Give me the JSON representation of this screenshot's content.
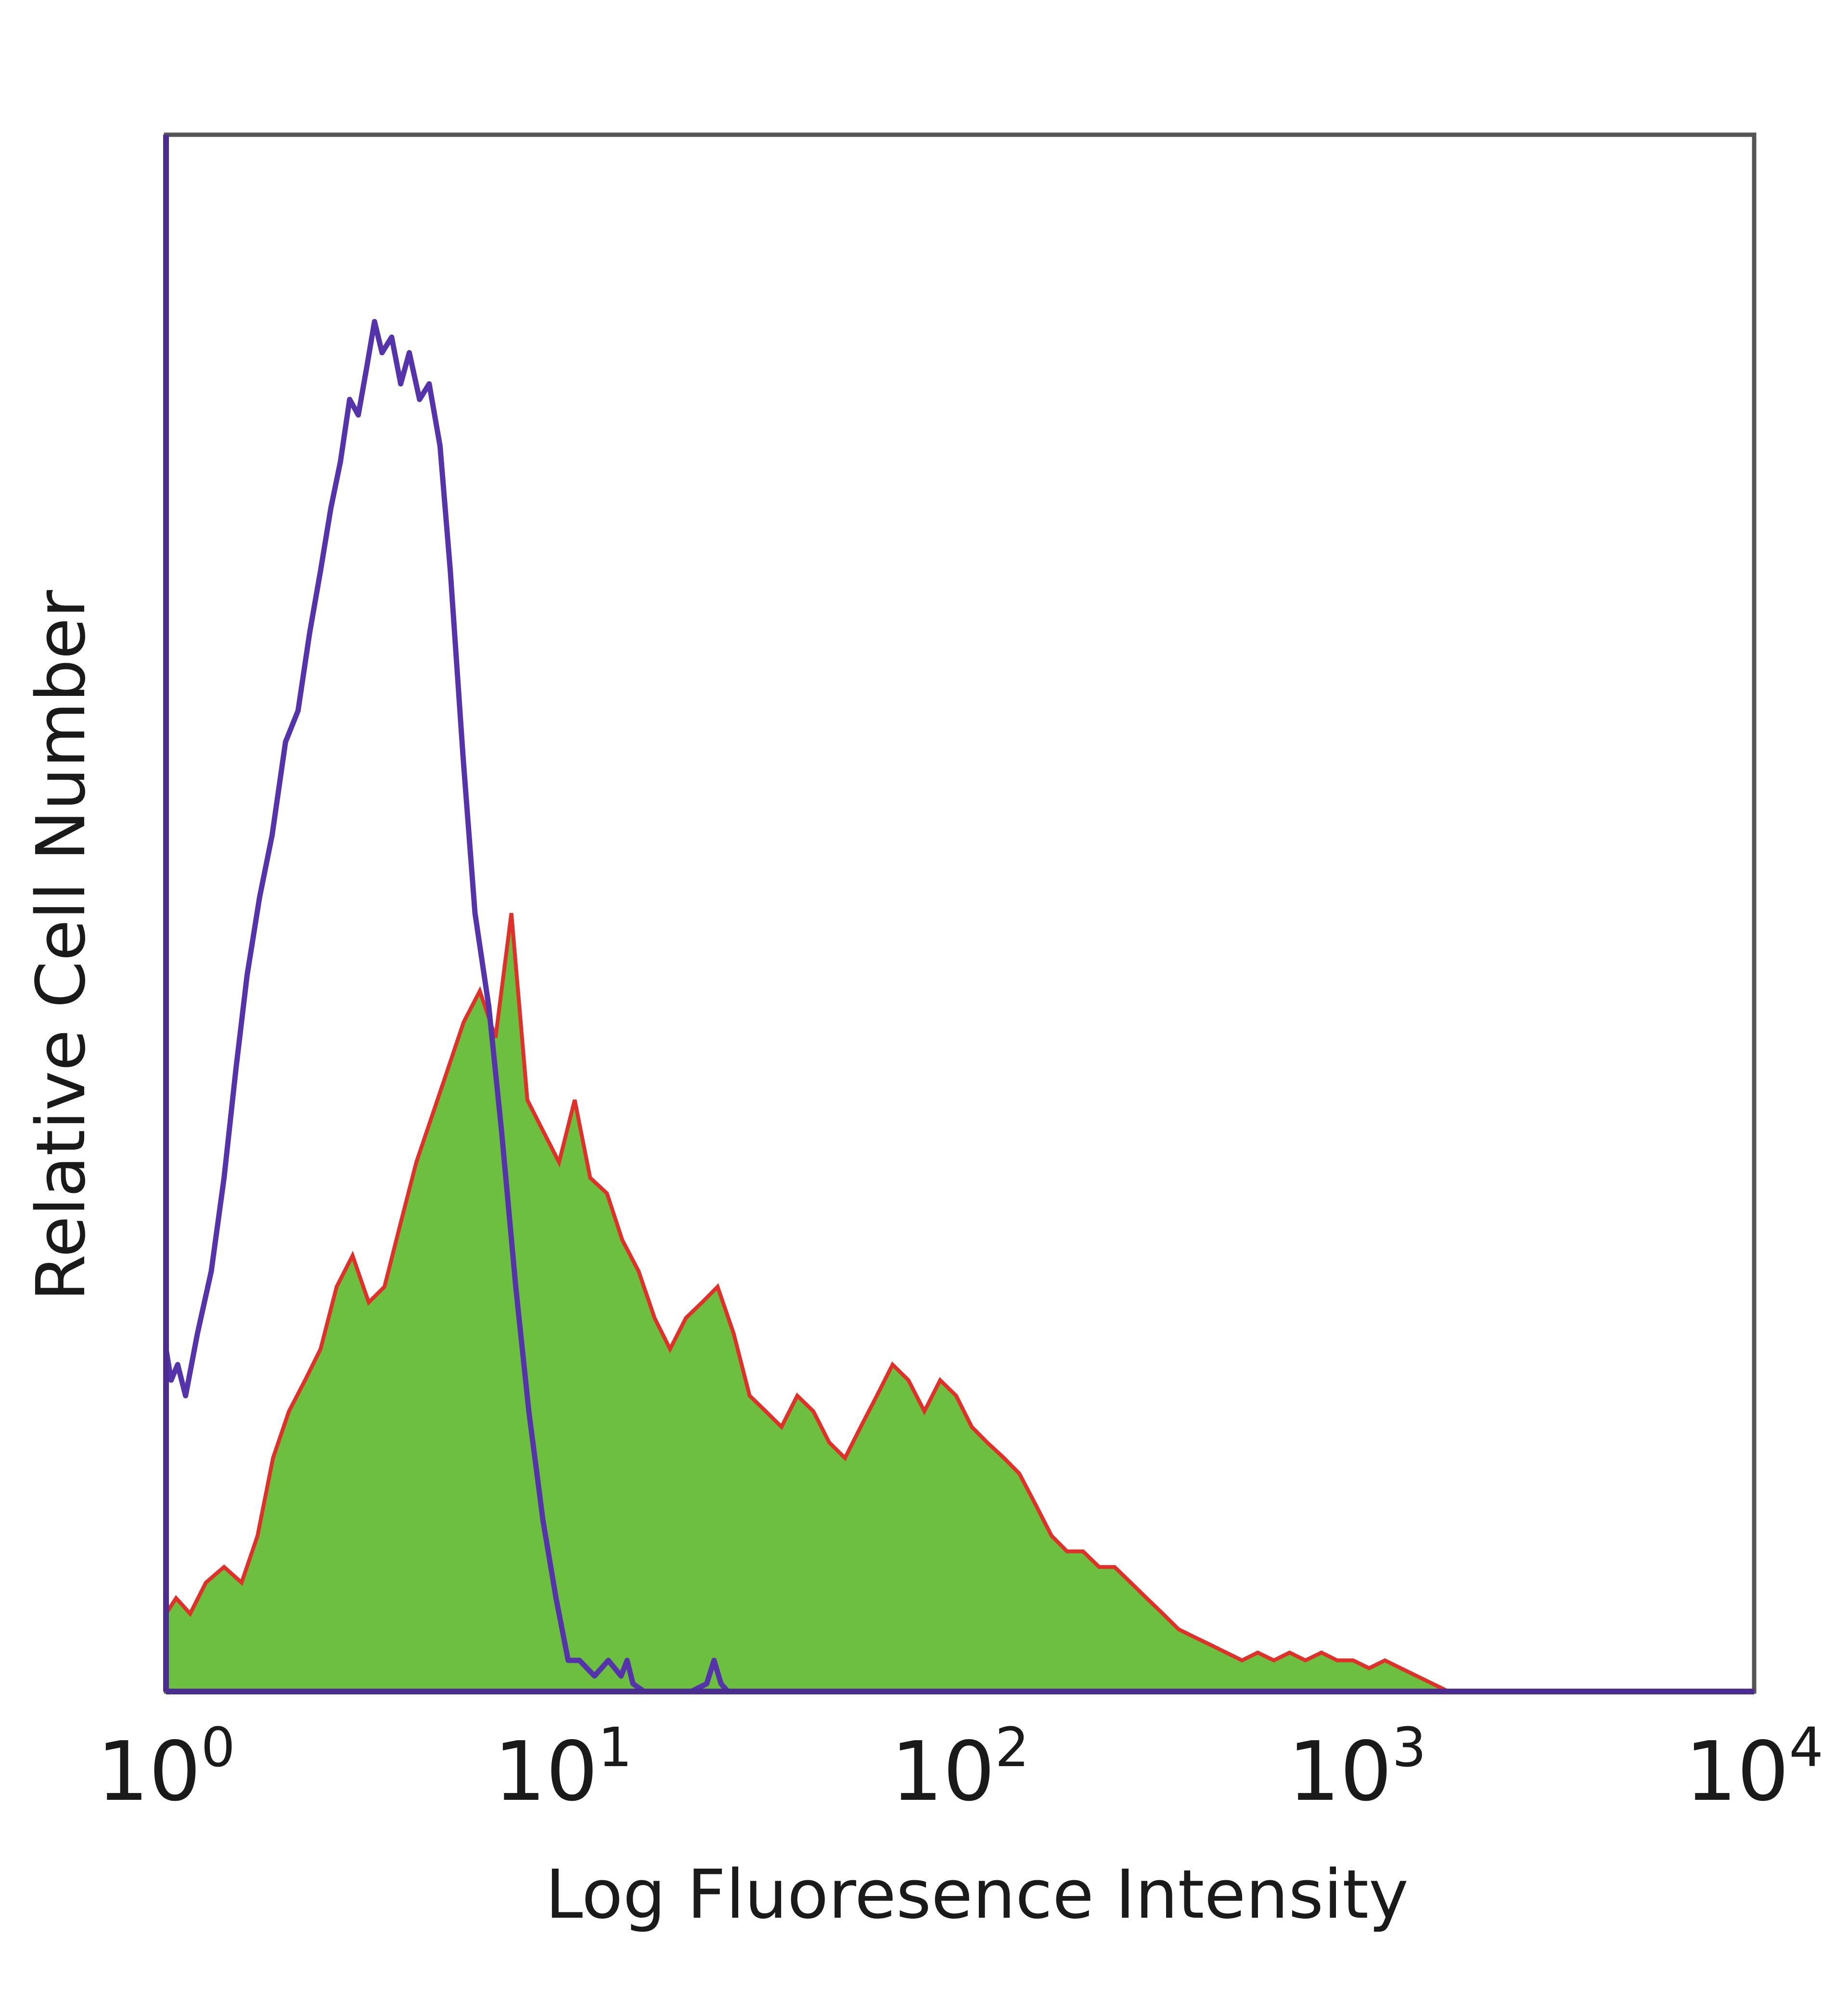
{
  "chart_data": {
    "type": "area",
    "title": "",
    "xlabel": "Log Fluoresence Intensity",
    "ylabel": "Relative Cell Number",
    "x_scale": "log",
    "xlim": [
      1,
      10000
    ],
    "ylim": [
      0,
      1
    ],
    "grid": false,
    "legend": "none",
    "x_ticks": [
      {
        "value": 1,
        "base": "10",
        "exp": "0"
      },
      {
        "value": 10,
        "base": "10",
        "exp": "1"
      },
      {
        "value": 100,
        "base": "10",
        "exp": "2"
      },
      {
        "value": 1000,
        "base": "10",
        "exp": "3"
      },
      {
        "value": 10000,
        "base": "10",
        "exp": "4"
      }
    ],
    "series": [
      {
        "style": "filled",
        "fill_color": "#6cbf3f",
        "edge_color": "#e0302a",
        "x": [
          1.0,
          1.06,
          1.15,
          1.26,
          1.4,
          1.55,
          1.7,
          1.86,
          2.04,
          2.24,
          2.45,
          2.69,
          2.95,
          3.24,
          3.55,
          3.89,
          4.27,
          4.68,
          5.13,
          5.62,
          6.17,
          6.76,
          7.41,
          8.13,
          8.91,
          9.77,
          10.7,
          11.7,
          12.9,
          14.1,
          15.5,
          17.0,
          18.6,
          20.4,
          22.4,
          24.5,
          26.9,
          29.5,
          32.4,
          35.5,
          38.9,
          42.7,
          46.8,
          51.3,
          56.2,
          61.7,
          67.6,
          74.1,
          81.3,
          89.1,
          97.7,
          107,
          117,
          129,
          141,
          155,
          170,
          186,
          204,
          224,
          245,
          269,
          295,
          324,
          355,
          389,
          427,
          468,
          513,
          562,
          617,
          676,
          741,
          813,
          891,
          977,
          1072,
          1175,
          1288,
          1413,
          1549,
          1700
        ],
        "y": [
          0.05,
          0.06,
          0.05,
          0.07,
          0.08,
          0.07,
          0.1,
          0.15,
          0.18,
          0.2,
          0.22,
          0.26,
          0.28,
          0.25,
          0.26,
          0.3,
          0.34,
          0.37,
          0.4,
          0.43,
          0.45,
          0.42,
          0.5,
          0.38,
          0.36,
          0.34,
          0.38,
          0.33,
          0.32,
          0.29,
          0.27,
          0.24,
          0.22,
          0.24,
          0.25,
          0.26,
          0.23,
          0.19,
          0.18,
          0.17,
          0.19,
          0.18,
          0.16,
          0.15,
          0.17,
          0.19,
          0.21,
          0.2,
          0.18,
          0.2,
          0.19,
          0.17,
          0.16,
          0.15,
          0.14,
          0.12,
          0.1,
          0.09,
          0.09,
          0.08,
          0.08,
          0.07,
          0.06,
          0.05,
          0.04,
          0.035,
          0.03,
          0.025,
          0.02,
          0.025,
          0.02,
          0.025,
          0.02,
          0.025,
          0.02,
          0.02,
          0.015,
          0.02,
          0.015,
          0.01,
          0.005,
          0.0
        ]
      },
      {
        "style": "line",
        "line_color": "#5533aa",
        "x": [
          1.0,
          1.03,
          1.07,
          1.12,
          1.2,
          1.3,
          1.4,
          1.5,
          1.6,
          1.72,
          1.85,
          2.0,
          2.15,
          2.3,
          2.45,
          2.6,
          2.75,
          2.9,
          3.05,
          3.2,
          3.35,
          3.5,
          3.7,
          3.9,
          4.1,
          4.35,
          4.6,
          4.9,
          5.2,
          5.6,
          6.0,
          6.5,
          7.0,
          7.6,
          8.2,
          8.9,
          9.6,
          10.3,
          11.0,
          12.0,
          13.0,
          14.0,
          14.5,
          15.0,
          16.0,
          17.0,
          19.0,
          21.0,
          23.0,
          24.0,
          25.0,
          26.0,
          30.0,
          100,
          1000,
          10000
        ],
        "y": [
          0.22,
          0.2,
          0.21,
          0.19,
          0.23,
          0.27,
          0.33,
          0.4,
          0.46,
          0.51,
          0.55,
          0.61,
          0.63,
          0.68,
          0.72,
          0.76,
          0.79,
          0.83,
          0.82,
          0.85,
          0.88,
          0.86,
          0.87,
          0.84,
          0.86,
          0.83,
          0.84,
          0.8,
          0.72,
          0.6,
          0.5,
          0.44,
          0.36,
          0.26,
          0.18,
          0.11,
          0.06,
          0.02,
          0.02,
          0.01,
          0.02,
          0.01,
          0.02,
          0.005,
          0.0,
          0.0,
          0.0,
          0.0,
          0.005,
          0.02,
          0.005,
          0.0,
          0.0,
          0.0,
          0.0,
          0.0
        ]
      }
    ]
  }
}
